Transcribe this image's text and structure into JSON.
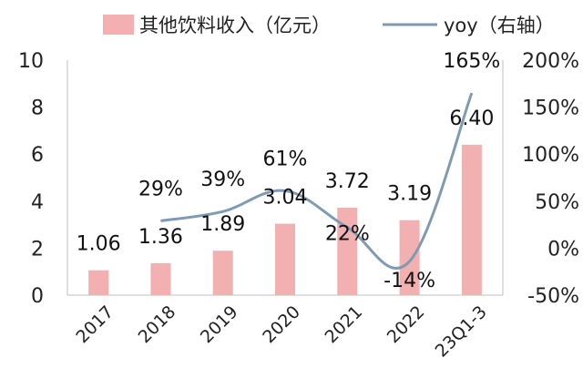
{
  "chart_data": {
    "type": "bar+line",
    "categories": [
      "2017",
      "2018",
      "2019",
      "2020",
      "2021",
      "2022",
      "23Q1-3"
    ],
    "series": [
      {
        "name": "其他饮料收入（亿元）",
        "type": "bar",
        "axis": "left",
        "values": [
          1.06,
          1.36,
          1.89,
          3.04,
          3.72,
          3.19,
          6.4
        ],
        "labels": [
          "1.06",
          "1.36",
          "1.89",
          "3.04",
          "3.72",
          "3.19",
          "6.40"
        ]
      },
      {
        "name": "yoy（右轴）",
        "type": "line",
        "axis": "right",
        "values": [
          null,
          29,
          39,
          61,
          22,
          -14,
          165
        ],
        "labels": [
          "",
          "29%",
          "39%",
          "61%",
          "22%",
          "-14%",
          "165%"
        ]
      }
    ],
    "left_axis": {
      "ylim": [
        0,
        10
      ],
      "ticks": [
        "0",
        "2",
        "4",
        "6",
        "8",
        "10"
      ]
    },
    "right_axis": {
      "ylim": [
        -50,
        200
      ],
      "ticks": [
        "-50%",
        "0%",
        "50%",
        "100%",
        "150%",
        "200%"
      ]
    },
    "grid": false,
    "legend_position": "top",
    "colors": {
      "bar": "#f2b0b0",
      "line": "#7f9bb3",
      "axis": "#bfbfbf"
    }
  }
}
